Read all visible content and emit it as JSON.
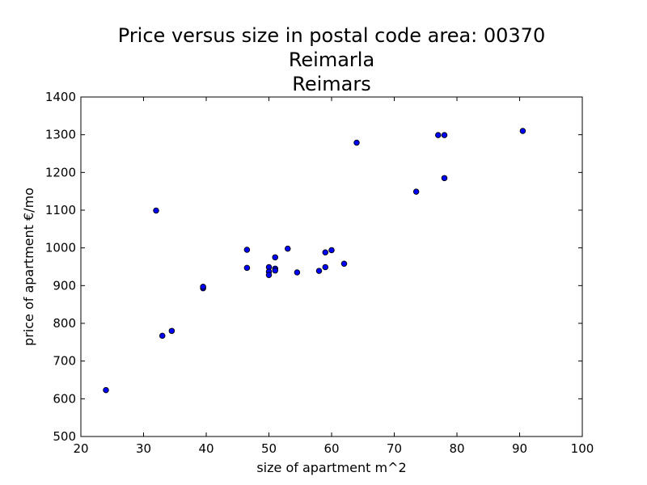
{
  "chart_data": {
    "type": "scatter",
    "title": [
      "Price versus size in postal code area: 00370",
      "Reimarla",
      "Reimars"
    ],
    "xlabel": "size of apartment m^2",
    "ylabel": "price of apartment €/mo",
    "xlim": [
      20,
      100
    ],
    "ylim": [
      500,
      1400
    ],
    "xticks": [
      20,
      30,
      40,
      50,
      60,
      70,
      80,
      90,
      100
    ],
    "yticks": [
      500,
      600,
      700,
      800,
      900,
      1000,
      1100,
      1200,
      1300,
      1400
    ],
    "grid": false,
    "marker_color": "#0000ff",
    "marker_edge": "#000000",
    "points": [
      {
        "x": 24.0,
        "y": 623
      },
      {
        "x": 32.0,
        "y": 1099
      },
      {
        "x": 33.0,
        "y": 767
      },
      {
        "x": 34.5,
        "y": 780
      },
      {
        "x": 39.5,
        "y": 893
      },
      {
        "x": 39.5,
        "y": 897
      },
      {
        "x": 46.5,
        "y": 995
      },
      {
        "x": 46.5,
        "y": 947
      },
      {
        "x": 50.0,
        "y": 949
      },
      {
        "x": 50.0,
        "y": 937
      },
      {
        "x": 50.0,
        "y": 928
      },
      {
        "x": 51.0,
        "y": 975
      },
      {
        "x": 51.0,
        "y": 945
      },
      {
        "x": 51.0,
        "y": 940
      },
      {
        "x": 53.0,
        "y": 998
      },
      {
        "x": 54.5,
        "y": 935
      },
      {
        "x": 58.0,
        "y": 939
      },
      {
        "x": 59.0,
        "y": 988
      },
      {
        "x": 59.0,
        "y": 949
      },
      {
        "x": 60.0,
        "y": 994
      },
      {
        "x": 62.0,
        "y": 958
      },
      {
        "x": 64.0,
        "y": 1279
      },
      {
        "x": 73.5,
        "y": 1149
      },
      {
        "x": 77.0,
        "y": 1299
      },
      {
        "x": 78.0,
        "y": 1299
      },
      {
        "x": 78.0,
        "y": 1185
      },
      {
        "x": 90.5,
        "y": 1310
      }
    ]
  }
}
